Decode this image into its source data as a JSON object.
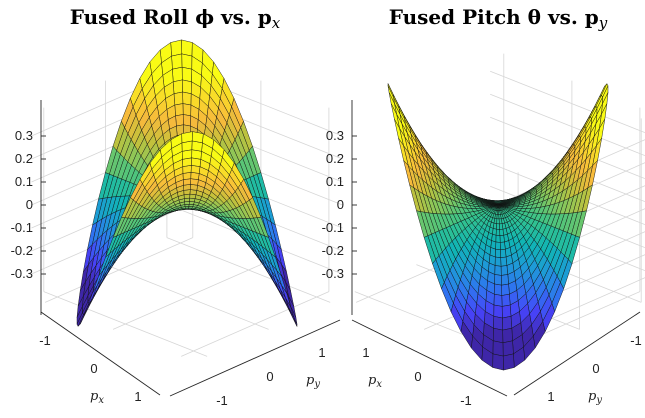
{
  "chart_data": [
    {
      "type": "surface",
      "title": "Fused Roll ϕ vs. p",
      "title_subscript": "x",
      "xlabel": "p",
      "xlabel_sub": "x",
      "ylabel": "p",
      "ylabel_sub": "y",
      "zlabel": "",
      "x_ticks": [
        "-1",
        "0",
        "1"
      ],
      "y_ticks": [
        "-1",
        "0",
        "1"
      ],
      "z_ticks": [
        "0.3",
        "0.2",
        "0.1",
        "0",
        "-0.1",
        "-0.2",
        "-0.3"
      ],
      "xlim": [
        -1.2,
        1.2
      ],
      "ylim": [
        -1.2,
        1.2
      ],
      "zlim": [
        -0.38,
        0.38
      ],
      "grid": true,
      "surface": "z = 0.36 * r^2 * sin(2*theta) over unit disk (r <= 1.2)",
      "colormap": "parula"
    },
    {
      "type": "surface",
      "title": "Fused Pitch θ vs. p",
      "title_subscript": "y",
      "xlabel": "p",
      "xlabel_sub": "x",
      "ylabel": "p",
      "ylabel_sub": "y",
      "zlabel": "",
      "x_ticks": [
        "1",
        "0",
        "-1"
      ],
      "y_ticks": [
        "-1",
        "0",
        "1"
      ],
      "z_ticks": [
        "0.3",
        "0.2",
        "0.1",
        "0",
        "-0.1",
        "-0.2",
        "-0.3"
      ],
      "xlim": [
        -1.2,
        1.2
      ],
      "ylim": [
        -1.2,
        1.2
      ],
      "zlim": [
        -0.38,
        0.38
      ],
      "grid": true,
      "surface": "z = 0.36 * r^2 * sin(2*theta) over unit disk (r <= 1.2)",
      "colormap": "parula"
    }
  ],
  "colors": {
    "parula": [
      "#3e26a8",
      "#4743f8",
      "#2f74f0",
      "#1e9ad8",
      "#10b5b5",
      "#35c38c",
      "#86c75c",
      "#c4c13b",
      "#f7ba3c",
      "#f9dc28",
      "#f9fb15"
    ]
  }
}
